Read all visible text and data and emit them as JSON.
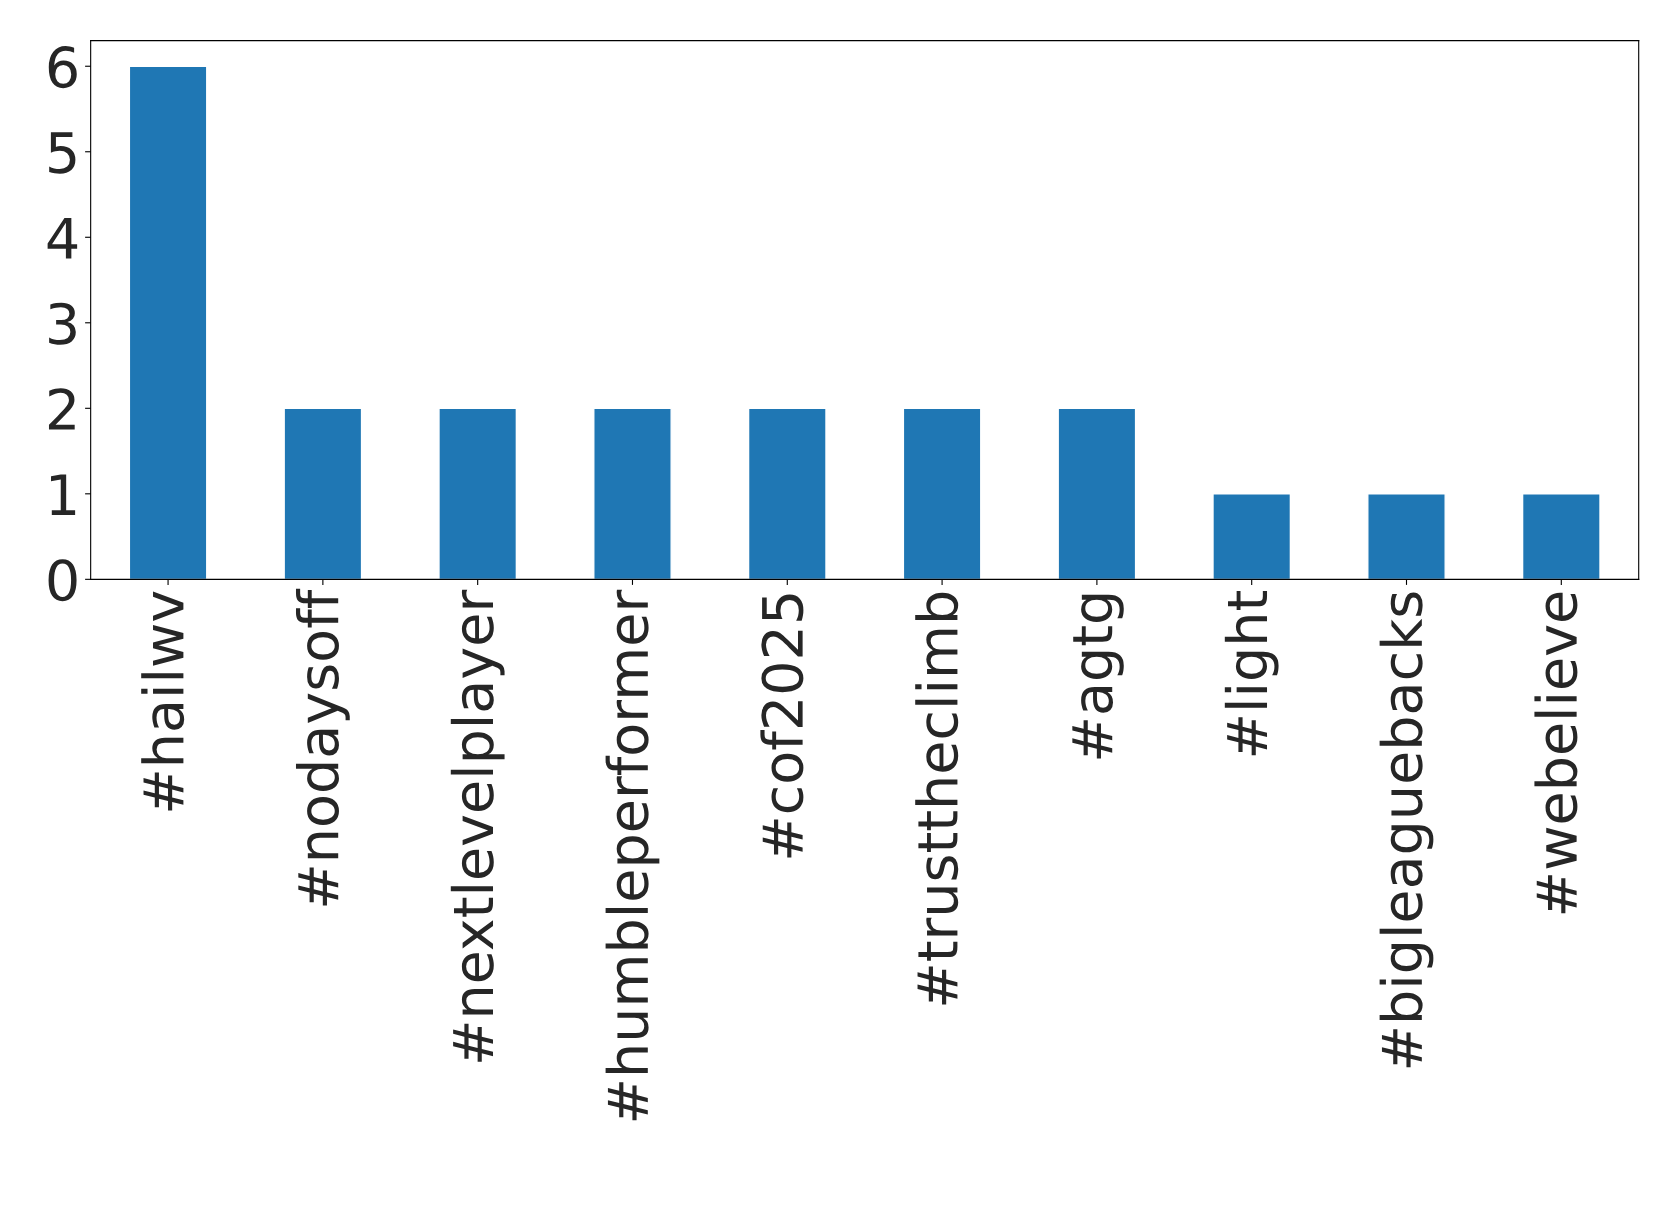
{
  "chart_data": {
    "type": "bar",
    "categories": [
      "#hailwv",
      "#nodaysoff",
      "#nextlevelplayer",
      "#humbleperformer",
      "#cof2025",
      "#trusttheclimb",
      "#agtg",
      "#light",
      "#bigleaguebacks",
      "#webelieve"
    ],
    "values": [
      6,
      2,
      2,
      2,
      2,
      2,
      2,
      1,
      1,
      1
    ],
    "color": "#1f77b4",
    "ylim": [
      0,
      6.3
    ],
    "yticks": [
      0,
      1,
      2,
      3,
      4,
      5,
      6
    ],
    "grid": false,
    "legend": false
  }
}
